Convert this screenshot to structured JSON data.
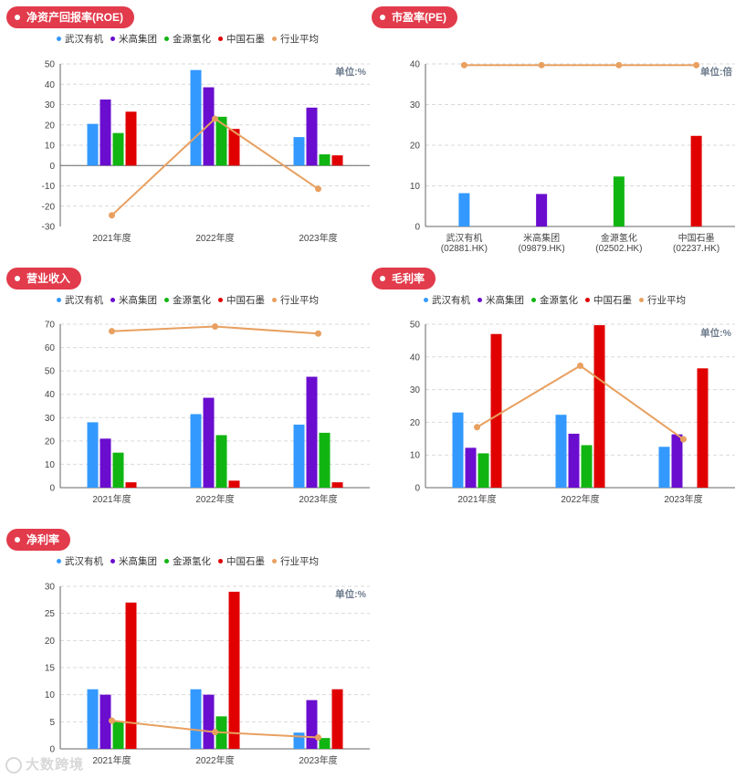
{
  "legend_names": [
    "武汉有机",
    "米高集团",
    "金源氢化",
    "中国石墨",
    "行业平均"
  ],
  "colors": [
    "#3399ff",
    "#6a0dcf",
    "#11b511",
    "#e00000",
    "#e8a060"
  ],
  "watermark": "大数跨境",
  "chart_data": [
    {
      "id": "roe",
      "type": "bar",
      "title": "净资产回报率(ROE)",
      "unit": "单位:%",
      "categories": [
        "2021年度",
        "2022年度",
        "2023年度"
      ],
      "ylim": [
        -30,
        50
      ],
      "yticks": [
        50,
        40,
        30,
        20,
        10,
        0,
        -10,
        -20,
        -30
      ],
      "series": [
        {
          "name": "武汉有机",
          "values": [
            20.5,
            47,
            14
          ]
        },
        {
          "name": "米高集团",
          "values": [
            32.5,
            38.5,
            28.5
          ]
        },
        {
          "name": "金源氢化",
          "values": [
            16,
            24,
            5.5
          ]
        },
        {
          "name": "中国石墨",
          "values": [
            26.5,
            18,
            5
          ]
        }
      ],
      "line": {
        "name": "行业平均",
        "values": [
          -24.5,
          23,
          -11.5
        ]
      },
      "legend": true,
      "legend_placement": "top",
      "grid": true
    },
    {
      "id": "pe",
      "type": "bar",
      "title": "市盈率(PE)",
      "unit": "单位:倍",
      "categories": [
        "武汉有机\n(02881.HK)",
        "米高集团\n(09879.HK)",
        "金源氢化\n(02502.HK)",
        "中国石墨\n(02237.HK)"
      ],
      "ylim": [
        0,
        40
      ],
      "yticks": [
        40,
        30,
        20,
        10,
        0
      ],
      "values": [
        8.2,
        8,
        12.3,
        22.3
      ],
      "line": {
        "name": "行业平均",
        "values": [
          39.7,
          39.7,
          39.7,
          39.7
        ]
      },
      "legend": false,
      "grid": true
    },
    {
      "id": "revenue",
      "type": "bar",
      "title": "营业收入",
      "unit": "",
      "categories": [
        "2021年度",
        "2022年度",
        "2023年度"
      ],
      "ylim": [
        0,
        70
      ],
      "yticks": [
        70,
        60,
        50,
        40,
        30,
        20,
        10,
        0
      ],
      "series": [
        {
          "name": "武汉有机",
          "values": [
            28,
            31.5,
            27
          ]
        },
        {
          "name": "米高集团",
          "values": [
            21,
            38.5,
            47.5
          ]
        },
        {
          "name": "金源氢化",
          "values": [
            15,
            22.5,
            23.5
          ]
        },
        {
          "name": "中国石墨",
          "values": [
            2.3,
            3,
            2.3
          ]
        }
      ],
      "line": {
        "name": "行业平均",
        "values": [
          67,
          69,
          66
        ]
      },
      "legend": true,
      "legend_placement": "top",
      "grid": true
    },
    {
      "id": "gross",
      "type": "bar",
      "title": "毛利率",
      "unit": "单位:%",
      "categories": [
        "2021年度",
        "2022年度",
        "2023年度"
      ],
      "ylim": [
        0,
        50
      ],
      "yticks": [
        50,
        40,
        30,
        20,
        10,
        0
      ],
      "series": [
        {
          "name": "武汉有机",
          "values": [
            23,
            22.3,
            12.5
          ]
        },
        {
          "name": "米高集团",
          "values": [
            12.2,
            16.5,
            16.3
          ]
        },
        {
          "name": "金源氢化",
          "values": [
            10.5,
            13,
            0
          ]
        },
        {
          "name": "中国石墨",
          "values": [
            47,
            49.7,
            36.5
          ]
        }
      ],
      "line": {
        "name": "行业平均",
        "values": [
          18.5,
          37.3,
          14.8
        ]
      },
      "legend": true,
      "legend_placement": "top",
      "grid": true
    },
    {
      "id": "net",
      "type": "bar",
      "title": "净利率",
      "unit": "单位:%",
      "categories": [
        "2021年度",
        "2022年度",
        "2023年度"
      ],
      "ylim": [
        0,
        30
      ],
      "yticks": [
        30,
        25,
        20,
        15,
        10,
        5,
        0
      ],
      "series": [
        {
          "name": "武汉有机",
          "values": [
            11,
            11,
            3
          ]
        },
        {
          "name": "米高集团",
          "values": [
            10,
            10,
            9
          ]
        },
        {
          "name": "金源氢化",
          "values": [
            5,
            6,
            2
          ]
        },
        {
          "name": "中国石墨",
          "values": [
            27,
            29,
            11
          ]
        }
      ],
      "line": {
        "name": "行业平均",
        "values": [
          5.2,
          3.1,
          2.1
        ]
      },
      "legend": true,
      "legend_placement": "top",
      "grid": true
    }
  ]
}
